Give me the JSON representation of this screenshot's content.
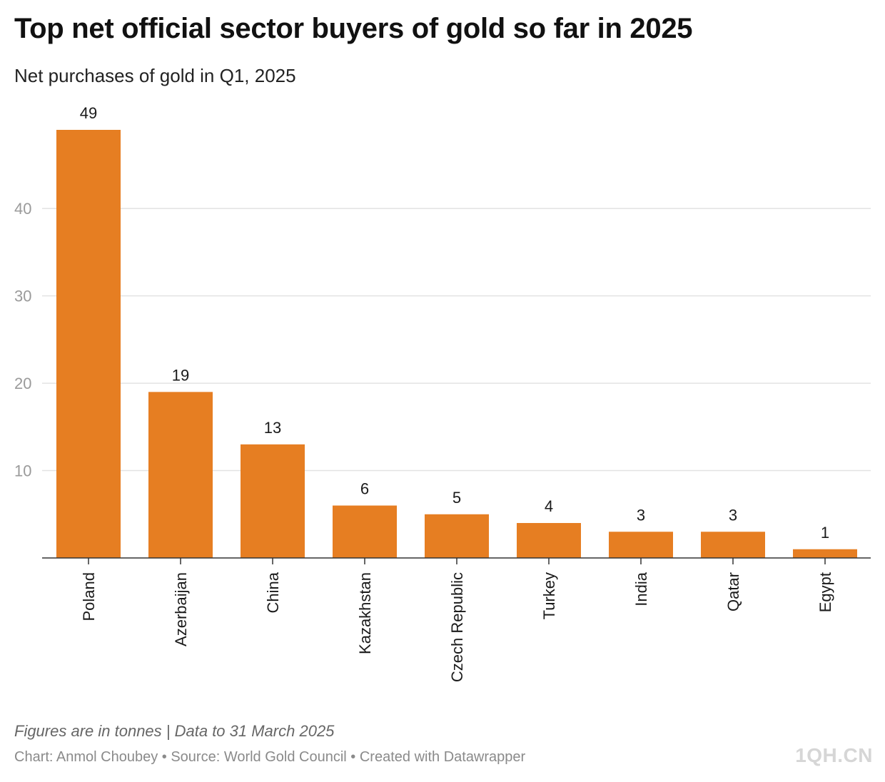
{
  "title": "Top net official sector buyers of gold so far in 2025",
  "subtitle": "Net purchases of gold in Q1, 2025",
  "notes": "Figures are in tonnes | Data to 31 March 2025",
  "footer": "Chart: Anmol Choubey • Source: World Gold Council • Created with Datawrapper",
  "watermark": "1QH.CN",
  "colors": {
    "bar": "#e67e22",
    "grid": "#e3e3e3",
    "axis": "#333333",
    "tick_label": "#9a9a9a",
    "label": "#1a1a1a"
  },
  "chart_data": {
    "type": "bar",
    "categories": [
      "Poland",
      "Azerbaijan",
      "China",
      "Kazakhstan",
      "Czech Republic",
      "Turkey",
      "India",
      "Qatar",
      "Egypt"
    ],
    "values": [
      49,
      19,
      13,
      6,
      5,
      4,
      3,
      3,
      1
    ],
    "title": "Top net official sector buyers of gold so far in 2025",
    "subtitle": "Net purchases of gold in Q1, 2025",
    "xlabel": "",
    "ylabel": "",
    "yticks": [
      10,
      20,
      30,
      40
    ],
    "ylim": [
      0,
      49
    ],
    "grid": true,
    "legend": "none",
    "category_label_orientation": "vertical"
  }
}
